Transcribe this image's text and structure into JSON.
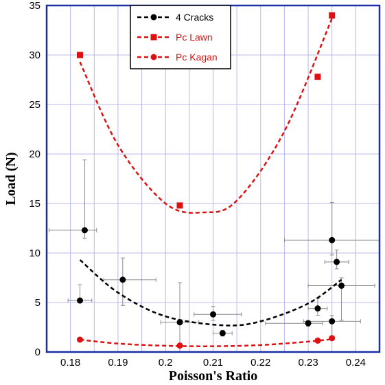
{
  "chart_data": {
    "type": "scatter",
    "title": "",
    "xlabel": "Poisson's Ratio",
    "ylabel": "Load (N)",
    "xlim": [
      0.175,
      0.245
    ],
    "ylim": [
      0,
      35
    ],
    "x_ticks": [
      0.18,
      0.19,
      0.2,
      0.21,
      0.22,
      0.23,
      0.24
    ],
    "x_tick_labels": [
      "0.18",
      "0.19",
      "0.2",
      "0.21",
      "0.22",
      "0.23",
      "0.24"
    ],
    "y_ticks": [
      0,
      5,
      10,
      15,
      20,
      25,
      30,
      35
    ],
    "y_tick_labels": [
      "0",
      "5",
      "10",
      "15",
      "20",
      "25",
      "30",
      "35"
    ],
    "grid": true,
    "legend_position": "top-center",
    "series": [
      {
        "name": "4 Cracks",
        "color": "#000000",
        "marker": "circle",
        "points": [
          {
            "x": 0.182,
            "y": 5.2,
            "xerr": [
              0.0025,
              0.0025
            ],
            "yerr": [
              0.2,
              1.6
            ]
          },
          {
            "x": 0.183,
            "y": 12.3,
            "xerr": [
              0.0075,
              0.0025
            ],
            "yerr": [
              0.8,
              7.1
            ]
          },
          {
            "x": 0.191,
            "y": 7.3,
            "xerr": [
              0.004,
              0.007
            ],
            "yerr": [
              2.6,
              2.2
            ]
          },
          {
            "x": 0.203,
            "y": 3.0,
            "xerr": [
              0.004,
              0.004
            ],
            "yerr": [
              3.0,
              4.0
            ]
          },
          {
            "x": 0.21,
            "y": 3.8,
            "xerr": [
              0.004,
              0.006
            ],
            "yerr": [
              0.6,
              0.8
            ]
          },
          {
            "x": 0.212,
            "y": 1.9,
            "xerr": [
              0.002,
              0.002
            ],
            "yerr": [
              0.3,
              0.3
            ]
          },
          {
            "x": 0.23,
            "y": 2.9,
            "xerr": [
              0.009,
              0.003
            ],
            "yerr": [
              0.3,
              0.3
            ]
          },
          {
            "x": 0.232,
            "y": 4.4,
            "xerr": [
              0.002,
              0.002
            ],
            "yerr": [
              0.7,
              1.0
            ]
          },
          {
            "x": 0.235,
            "y": 3.1,
            "xerr": [
              0.006,
              0.006
            ],
            "yerr": [
              1.5,
              0.6
            ]
          },
          {
            "x": 0.235,
            "y": 11.3,
            "xerr": [
              0.01,
              0.01
            ],
            "yerr": [
              1.5,
              3.8
            ]
          },
          {
            "x": 0.236,
            "y": 9.1,
            "xerr": [
              0.0025,
              0.0025
            ],
            "yerr": [
              0.7,
              1.2
            ]
          },
          {
            "x": 0.237,
            "y": 6.7,
            "xerr": [
              0.007,
              0.007
            ],
            "yerr": [
              3.5,
              0.8
            ]
          }
        ],
        "fit_curve": {
          "x": [
            0.182,
            0.19,
            0.2,
            0.212,
            0.22,
            0.23,
            0.237
          ],
          "y": [
            9.3,
            6.0,
            3.6,
            2.7,
            3.1,
            4.9,
            7.3
          ]
        }
      },
      {
        "name": "Pc Lawn",
        "color": "#dd1111",
        "marker": "square",
        "points": [
          {
            "x": 0.182,
            "y": 30.0
          },
          {
            "x": 0.203,
            "y": 14.8
          },
          {
            "x": 0.232,
            "y": 27.8
          },
          {
            "x": 0.235,
            "y": 34.0
          }
        ],
        "fit_curve": {
          "x": [
            0.182,
            0.19,
            0.2,
            0.208,
            0.215,
            0.225,
            0.235
          ],
          "y": [
            29.3,
            20.9,
            15.0,
            14.1,
            15.3,
            22.3,
            33.7
          ]
        }
      },
      {
        "name": "Pc Kagan",
        "color": "#dd1111",
        "marker": "circle",
        "points": [
          {
            "x": 0.182,
            "y": 1.25
          },
          {
            "x": 0.203,
            "y": 0.65
          },
          {
            "x": 0.232,
            "y": 1.15
          },
          {
            "x": 0.235,
            "y": 1.4
          }
        ],
        "fit_curve": {
          "x": [
            0.182,
            0.19,
            0.2,
            0.21,
            0.22,
            0.23,
            0.235
          ],
          "y": [
            1.25,
            0.85,
            0.63,
            0.58,
            0.7,
            1.05,
            1.3
          ]
        }
      }
    ]
  }
}
